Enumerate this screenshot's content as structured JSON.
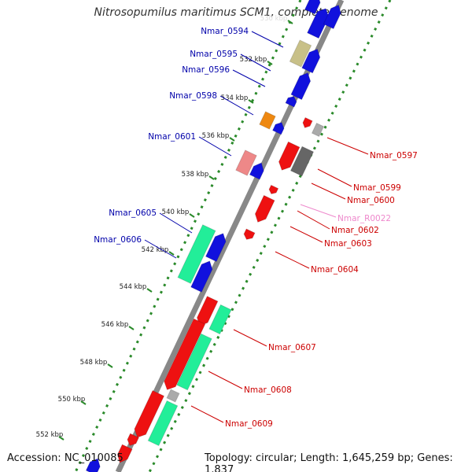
{
  "title": "Nitrosopumilus maritimus SCM1, complete genome",
  "footer": {
    "accession": "Accession: NC_010085",
    "topology": "Topology: circular; Length: 1,645,259 bp; Genes: 1,837"
  },
  "colors": {
    "backbone": "#888888",
    "tick_track": "#2a8a2a",
    "label_forward": "#0000aa",
    "label_reverse": "#cc0000",
    "label_rna": "#ee88cc",
    "gene_red": "#ee1111",
    "gene_blue": "#1111dd",
    "gene_green": "#22ee99",
    "gene_olive": "#c8c088",
    "gene_orange": "#ee8811",
    "gene_pink": "#ee8888",
    "gene_gray": "#aaaaaa",
    "gene_darkgray": "#666666"
  },
  "kbp_ticks": [
    "530 kbp",
    "532 kbp",
    "534 kbp",
    "536 kbp",
    "538 kbp",
    "540 kbp",
    "542 kbp",
    "544 kbp",
    "546 kbp",
    "548 kbp",
    "550 kbp",
    "552 kbp"
  ],
  "gene_labels_forward": [
    "Nmar_0594",
    "Nmar_0595",
    "Nmar_0596",
    "Nmar_0598",
    "Nmar_0601",
    "Nmar_0605",
    "Nmar_0606"
  ],
  "gene_labels_reverse": [
    "Nmar_0597",
    "Nmar_0599",
    "Nmar_0600",
    "Nmar_R0022",
    "Nmar_0602",
    "Nmar_0603",
    "Nmar_0604",
    "Nmar_0607",
    "Nmar_0608",
    "Nmar_0609"
  ]
}
